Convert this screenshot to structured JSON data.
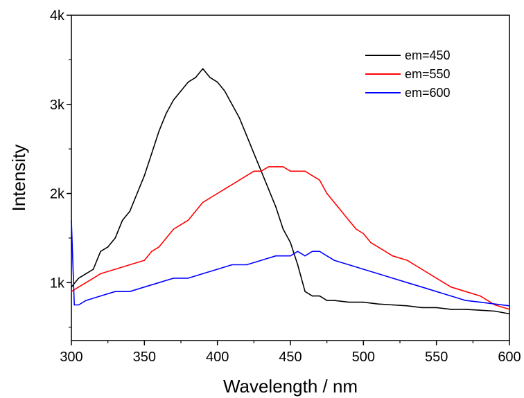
{
  "chart_data": {
    "type": "line",
    "xlabel": "Wavelength / nm",
    "ylabel": "Intensity",
    "xlim": [
      300,
      600
    ],
    "ylim": [
      350,
      4000
    ],
    "xticks": [
      300,
      350,
      400,
      450,
      500,
      550,
      600
    ],
    "yticks": [
      1000,
      2000,
      3000,
      4000
    ],
    "ytick_labels": [
      "1k",
      "2k",
      "3k",
      "4k"
    ],
    "legend_position": "top-right",
    "series": [
      {
        "name": "em=450",
        "color": "#000000",
        "points": [
          [
            300,
            950
          ],
          [
            305,
            1050
          ],
          [
            310,
            1100
          ],
          [
            315,
            1150
          ],
          [
            320,
            1350
          ],
          [
            325,
            1400
          ],
          [
            330,
            1500
          ],
          [
            335,
            1700
          ],
          [
            340,
            1800
          ],
          [
            345,
            2000
          ],
          [
            350,
            2200
          ],
          [
            355,
            2450
          ],
          [
            360,
            2700
          ],
          [
            365,
            2900
          ],
          [
            370,
            3050
          ],
          [
            375,
            3150
          ],
          [
            380,
            3250
          ],
          [
            385,
            3300
          ],
          [
            390,
            3400
          ],
          [
            395,
            3300
          ],
          [
            400,
            3250
          ],
          [
            405,
            3150
          ],
          [
            410,
            3000
          ],
          [
            415,
            2850
          ],
          [
            420,
            2650
          ],
          [
            425,
            2450
          ],
          [
            430,
            2250
          ],
          [
            435,
            2050
          ],
          [
            440,
            1850
          ],
          [
            445,
            1600
          ],
          [
            450,
            1450
          ],
          [
            455,
            1200
          ],
          [
            460,
            900
          ],
          [
            465,
            850
          ],
          [
            470,
            850
          ],
          [
            475,
            800
          ],
          [
            480,
            800
          ],
          [
            490,
            780
          ],
          [
            500,
            780
          ],
          [
            510,
            760
          ],
          [
            520,
            750
          ],
          [
            530,
            740
          ],
          [
            540,
            720
          ],
          [
            550,
            720
          ],
          [
            560,
            700
          ],
          [
            570,
            700
          ],
          [
            580,
            690
          ],
          [
            590,
            680
          ],
          [
            600,
            650
          ]
        ]
      },
      {
        "name": "em=550",
        "color": "#ff0000",
        "points": [
          [
            300,
            900
          ],
          [
            305,
            950
          ],
          [
            310,
            1000
          ],
          [
            315,
            1050
          ],
          [
            320,
            1100
          ],
          [
            330,
            1150
          ],
          [
            340,
            1200
          ],
          [
            350,
            1250
          ],
          [
            355,
            1350
          ],
          [
            360,
            1400
          ],
          [
            365,
            1500
          ],
          [
            370,
            1600
          ],
          [
            375,
            1650
          ],
          [
            380,
            1700
          ],
          [
            385,
            1800
          ],
          [
            390,
            1900
          ],
          [
            395,
            1950
          ],
          [
            400,
            2000
          ],
          [
            405,
            2050
          ],
          [
            410,
            2100
          ],
          [
            415,
            2150
          ],
          [
            420,
            2200
          ],
          [
            425,
            2250
          ],
          [
            430,
            2250
          ],
          [
            435,
            2300
          ],
          [
            440,
            2300
          ],
          [
            445,
            2300
          ],
          [
            450,
            2250
          ],
          [
            455,
            2250
          ],
          [
            460,
            2250
          ],
          [
            465,
            2200
          ],
          [
            470,
            2150
          ],
          [
            475,
            2000
          ],
          [
            480,
            1900
          ],
          [
            485,
            1800
          ],
          [
            490,
            1700
          ],
          [
            495,
            1600
          ],
          [
            500,
            1550
          ],
          [
            505,
            1450
          ],
          [
            510,
            1400
          ],
          [
            515,
            1350
          ],
          [
            520,
            1300
          ],
          [
            530,
            1250
          ],
          [
            540,
            1150
          ],
          [
            550,
            1050
          ],
          [
            560,
            950
          ],
          [
            570,
            900
          ],
          [
            580,
            850
          ],
          [
            590,
            750
          ],
          [
            600,
            700
          ]
        ]
      },
      {
        "name": "em=600",
        "color": "#0000ff",
        "points": [
          [
            300,
            1700
          ],
          [
            302,
            750
          ],
          [
            305,
            750
          ],
          [
            310,
            800
          ],
          [
            320,
            850
          ],
          [
            330,
            900
          ],
          [
            340,
            900
          ],
          [
            350,
            950
          ],
          [
            360,
            1000
          ],
          [
            370,
            1050
          ],
          [
            380,
            1050
          ],
          [
            390,
            1100
          ],
          [
            400,
            1150
          ],
          [
            410,
            1200
          ],
          [
            420,
            1200
          ],
          [
            430,
            1250
          ],
          [
            440,
            1300
          ],
          [
            450,
            1300
          ],
          [
            455,
            1350
          ],
          [
            460,
            1300
          ],
          [
            465,
            1350
          ],
          [
            470,
            1350
          ],
          [
            475,
            1300
          ],
          [
            480,
            1250
          ],
          [
            490,
            1200
          ],
          [
            500,
            1150
          ],
          [
            510,
            1100
          ],
          [
            520,
            1050
          ],
          [
            530,
            1000
          ],
          [
            540,
            950
          ],
          [
            550,
            900
          ],
          [
            560,
            850
          ],
          [
            570,
            800
          ],
          [
            580,
            780
          ],
          [
            590,
            760
          ],
          [
            600,
            740
          ]
        ]
      }
    ]
  }
}
